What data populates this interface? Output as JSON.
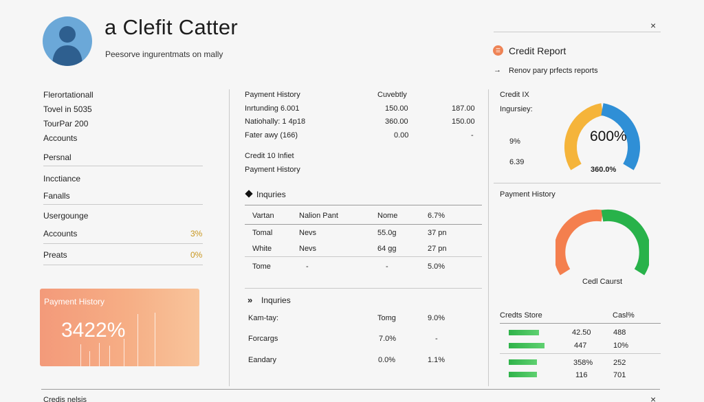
{
  "header": {
    "title": "a Clefit Catter",
    "subtitle": "Peesorve ingurentmats on mally",
    "close_label": "×",
    "report_title": "Credit Report",
    "report_link": "Renov pary prfects reports",
    "report_arrow": "→"
  },
  "sidebar": {
    "lines": [
      "Flerortationall",
      "Tovel in 5035",
      "TourPar 200",
      "Accounts"
    ],
    "personal": "Persnal",
    "inctiance": "Incctiance",
    "fanalls": "Fanalls",
    "usergounge": "Usergounge",
    "accounts_label": "Accounts",
    "accounts_pct": "3%",
    "preats_label": "Preats",
    "preats_pct": "0%"
  },
  "history_card": {
    "label": "Payment History",
    "value": "3422%"
  },
  "middle": {
    "head": {
      "label": "Payment History",
      "col": "Cuvebtly"
    },
    "rows": [
      {
        "label": "Inrtunding 6.001",
        "a": "150.00",
        "b": "187.00"
      },
      {
        "label": "Natiohally: 1 4p18",
        "a": "360.00",
        "b": "150.00"
      },
      {
        "label": "Fater awy (166)",
        "a": "0.00",
        "b": "-"
      }
    ],
    "credit_line": "Credit 10 Infiet",
    "payment_line": "Payment History",
    "inquiries_title": "Inquries",
    "table_headers": [
      "Vartan",
      "Nalion Pant",
      "Nome",
      "6.7%"
    ],
    "table_rows": [
      [
        "Tomal",
        "Nevs",
        "55.0g",
        "37 pn"
      ],
      [
        "White",
        "Nevs",
        "64 gg",
        "27 pn"
      ],
      [
        "Tome",
        "-",
        "-",
        "5.0%"
      ]
    ],
    "inquiries2_title": "Inquries",
    "list_rows": [
      [
        "Kam-tay:",
        "Tomg",
        "9.0%"
      ],
      [
        "Forcargs",
        "7.0%",
        "-"
      ],
      [
        "Eandary",
        "0.0%",
        "1.1%"
      ]
    ],
    "inquiry_icon": "»"
  },
  "right": {
    "credit_ix": "Credit IX",
    "ingursiey": "Ingursiey:",
    "pct_left": "9%",
    "val_left": "6.39",
    "gauge1_value": "600%",
    "gauge1_sub": "360.0%",
    "payment_history": "Payment History",
    "gauge2_caption": "Cedl Caurst",
    "credits_store": "Credts Store",
    "cash_label": "Casl%",
    "store_rows": [
      {
        "a": "42.50",
        "b": "488",
        "bar": 0.8
      },
      {
        "a": "447",
        "b": "10%",
        "bar": 0.95
      },
      {
        "a": "358%",
        "b": "252",
        "bar": 0.75
      },
      {
        "a": "116",
        "b": "701",
        "bar": 0.75
      }
    ]
  },
  "footer": {
    "left_text": "Credis nelsis",
    "close_label": "×"
  },
  "colors": {
    "amber": "#f5b43a",
    "blue": "#2f8fd6",
    "orange": "#f47f4e",
    "green": "#28b24a",
    "report_icon": "#ee8355"
  }
}
